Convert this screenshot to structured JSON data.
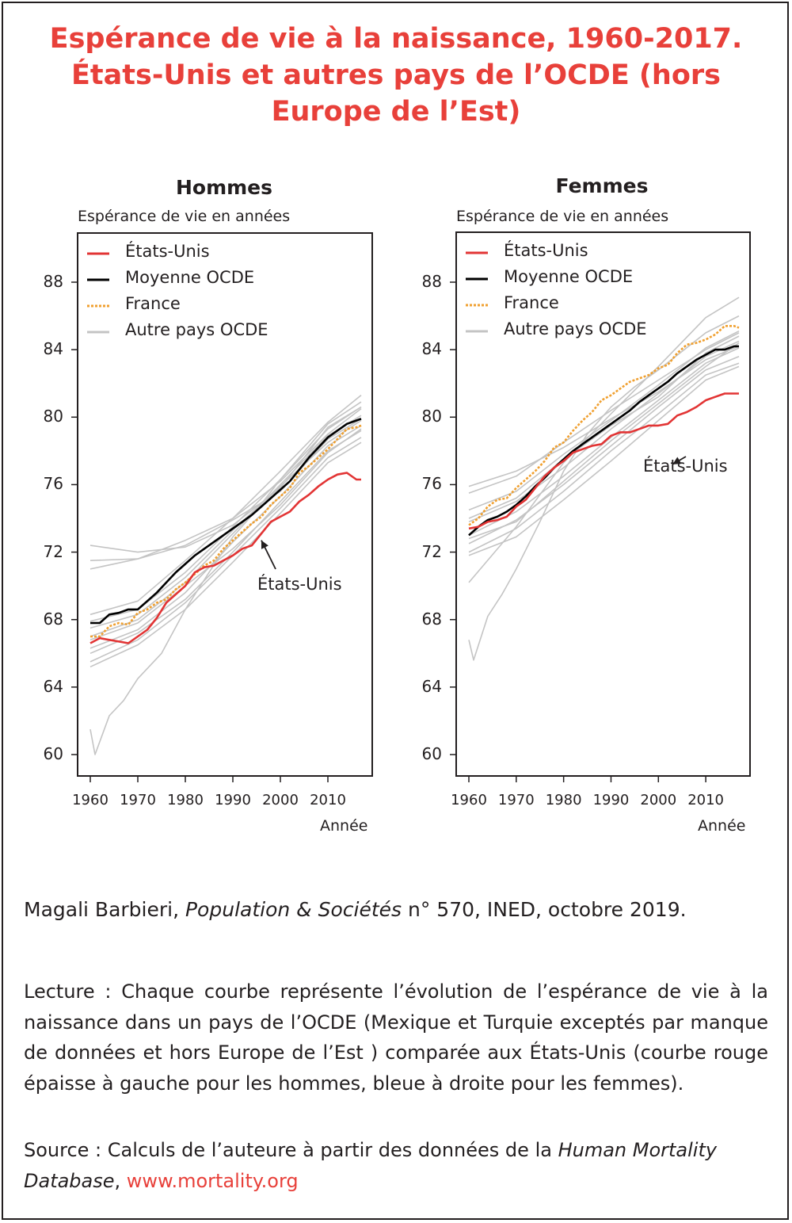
{
  "title": {
    "line1": "Espérance de vie à la naissance, 1960-2017.",
    "line2": "États-Unis et autres pays de l’OCDE (hors",
    "line3": "Europe de l’Est)"
  },
  "colors": {
    "title": "#e8403a",
    "us": "#e23434",
    "oecd": "#000000",
    "france": "#f0a030",
    "others": "#c4c4c4",
    "link": "#e8403a"
  },
  "legend": {
    "us": "États-Unis",
    "oecd": "Moyenne OCDE",
    "france": "France",
    "others": "Autre pays OCDE"
  },
  "chart_data": [
    {
      "type": "line",
      "title": "Hommes",
      "ylabel": "Espérance de vie en années",
      "xlabel": "Année",
      "xlim": [
        1959,
        2017
      ],
      "ylim": [
        59,
        91
      ],
      "xticks": [
        1960,
        1970,
        1980,
        1990,
        2000,
        2010
      ],
      "yticks": [
        60,
        64,
        68,
        72,
        76,
        80,
        84,
        88
      ],
      "annotation": {
        "text": "États-Unis",
        "x": 1996,
        "y": 72.7
      },
      "series": [
        {
          "name": "États-Unis",
          "role": "us",
          "x": [
            1960,
            1962,
            1964,
            1966,
            1968,
            1970,
            1972,
            1974,
            1976,
            1978,
            1980,
            1982,
            1984,
            1986,
            1988,
            1990,
            1992,
            1994,
            1996,
            1998,
            2000,
            2002,
            2004,
            2006,
            2008,
            2010,
            2012,
            2014,
            2016,
            2017
          ],
          "y": [
            66.6,
            66.9,
            66.8,
            66.7,
            66.6,
            67.0,
            67.4,
            68.1,
            69.0,
            69.5,
            70.0,
            70.8,
            71.1,
            71.2,
            71.5,
            71.8,
            72.2,
            72.4,
            73.1,
            73.8,
            74.1,
            74.4,
            75.0,
            75.4,
            75.9,
            76.3,
            76.6,
            76.7,
            76.3,
            76.3
          ]
        },
        {
          "name": "Moyenne OCDE",
          "role": "oecd",
          "x": [
            1960,
            1962,
            1964,
            1966,
            1968,
            1970,
            1972,
            1974,
            1976,
            1978,
            1980,
            1982,
            1984,
            1986,
            1988,
            1990,
            1992,
            1994,
            1996,
            1998,
            2000,
            2002,
            2004,
            2006,
            2008,
            2010,
            2012,
            2014,
            2016,
            2017
          ],
          "y": [
            67.8,
            67.8,
            68.3,
            68.4,
            68.6,
            68.6,
            69.1,
            69.6,
            70.2,
            70.8,
            71.3,
            71.8,
            72.2,
            72.6,
            73.0,
            73.4,
            73.8,
            74.2,
            74.7,
            75.2,
            75.7,
            76.2,
            76.9,
            77.6,
            78.2,
            78.8,
            79.2,
            79.6,
            79.8,
            79.9
          ]
        },
        {
          "name": "France",
          "role": "france",
          "x": [
            1960,
            1962,
            1964,
            1966,
            1968,
            1970,
            1972,
            1974,
            1976,
            1978,
            1980,
            1982,
            1984,
            1986,
            1988,
            1990,
            1992,
            1994,
            1996,
            1998,
            2000,
            2002,
            2004,
            2006,
            2008,
            2010,
            2012,
            2014,
            2016,
            2017
          ],
          "y": [
            67.0,
            67.0,
            67.6,
            67.8,
            67.7,
            68.4,
            68.6,
            69.0,
            69.2,
            69.8,
            70.2,
            70.7,
            71.2,
            71.5,
            72.2,
            72.7,
            73.2,
            73.7,
            74.1,
            74.8,
            75.3,
            75.8,
            76.7,
            77.1,
            77.6,
            78.1,
            78.7,
            79.3,
            79.4,
            79.5
          ]
        },
        {
          "name": "",
          "role": "others",
          "x": [
            1960,
            1970,
            1980,
            1990,
            2000,
            2010,
            2017
          ],
          "y": [
            71.0,
            71.6,
            72.7,
            74.0,
            76.2,
            79.0,
            80.5
          ]
        },
        {
          "name": "",
          "role": "others",
          "x": [
            1960,
            1970,
            1980,
            1990,
            2000,
            2010,
            2017
          ],
          "y": [
            71.5,
            71.6,
            72.4,
            73.9,
            75.6,
            78.7,
            79.9
          ]
        },
        {
          "name": "",
          "role": "others",
          "x": [
            1960,
            1970,
            1980,
            1990,
            2000,
            2010,
            2017
          ],
          "y": [
            72.4,
            72.0,
            72.3,
            73.6,
            75.8,
            79.4,
            80.6
          ]
        },
        {
          "name": "",
          "role": "others",
          "x": [
            1960,
            1970,
            1980,
            1990,
            2000,
            2010,
            2017
          ],
          "y": [
            68.3,
            69.1,
            71.5,
            74.0,
            76.8,
            79.7,
            81.3
          ]
        },
        {
          "name": "",
          "role": "others",
          "x": [
            1960,
            1970,
            1980,
            1990,
            2000,
            2010,
            2017
          ],
          "y": [
            67.9,
            68.6,
            70.8,
            73.5,
            76.3,
            79.3,
            80.6
          ]
        },
        {
          "name": "",
          "role": "others",
          "x": [
            1960,
            1970,
            1980,
            1990,
            2000,
            2010,
            2017
          ],
          "y": [
            67.0,
            68.0,
            70.2,
            73.1,
            76.0,
            78.9,
            80.1
          ]
        },
        {
          "name": "",
          "role": "others",
          "x": [
            1960,
            1970,
            1980,
            1990,
            2000,
            2010,
            2017
          ],
          "y": [
            66.3,
            67.4,
            69.6,
            72.6,
            75.3,
            78.3,
            79.5
          ]
        },
        {
          "name": "",
          "role": "others",
          "x": [
            1960,
            1970,
            1980,
            1990,
            2000,
            2010,
            2017
          ],
          "y": [
            66.0,
            67.2,
            69.2,
            72.0,
            75.0,
            78.0,
            79.2
          ]
        },
        {
          "name": "",
          "role": "others",
          "x": [
            1960,
            1970,
            1980,
            1990,
            2000,
            2010,
            2017
          ],
          "y": [
            65.5,
            66.8,
            69.0,
            71.8,
            74.6,
            77.6,
            78.8
          ]
        },
        {
          "name": "",
          "role": "others",
          "x": [
            1960,
            1970,
            1980,
            1990,
            2000,
            2010,
            2017
          ],
          "y": [
            65.2,
            66.5,
            68.6,
            71.4,
            74.3,
            77.3,
            78.5
          ]
        },
        {
          "name": "",
          "role": "others",
          "x": [
            1960,
            1970,
            1980,
            1990,
            2000,
            2010,
            2017
          ],
          "y": [
            66.8,
            67.8,
            70.0,
            72.2,
            74.8,
            77.9,
            79.3
          ]
        },
        {
          "name": "",
          "role": "others",
          "x": [
            1960,
            1970,
            1980,
            1990,
            2000,
            2010,
            2017
          ],
          "y": [
            67.5,
            68.3,
            70.5,
            73.3,
            75.9,
            78.5,
            79.8
          ]
        },
        {
          "name": "",
          "role": "others",
          "x": [
            1960,
            1961,
            1964,
            1967,
            1970,
            1975,
            1980,
            1985,
            1990,
            1995,
            2000,
            2010,
            2017
          ],
          "y": [
            61.5,
            60.0,
            62.3,
            63.2,
            64.5,
            66.0,
            68.6,
            70.8,
            72.9,
            74.5,
            76.3,
            79.6,
            80.9
          ]
        }
      ]
    },
    {
      "type": "line",
      "title": "Femmes",
      "ylabel": "Espérance de vie en années",
      "xlabel": "Année",
      "xlim": [
        1959,
        2017
      ],
      "ylim": [
        59,
        91
      ],
      "xticks": [
        1960,
        1970,
        1980,
        1990,
        2000,
        2010
      ],
      "yticks": [
        60,
        64,
        68,
        72,
        76,
        80,
        84,
        88
      ],
      "annotation": {
        "text": "États-Unis",
        "x": 2003,
        "y": 77.2
      },
      "series": [
        {
          "name": "États-Unis",
          "role": "us",
          "x": [
            1960,
            1962,
            1964,
            1966,
            1968,
            1970,
            1972,
            1974,
            1976,
            1978,
            1980,
            1982,
            1984,
            1986,
            1988,
            1990,
            1992,
            1994,
            1996,
            1998,
            2000,
            2002,
            2004,
            2006,
            2008,
            2010,
            2012,
            2014,
            2016,
            2017
          ],
          "y": [
            73.4,
            73.5,
            73.8,
            73.9,
            74.1,
            74.7,
            75.1,
            75.8,
            76.5,
            77.0,
            77.4,
            77.9,
            78.1,
            78.3,
            78.4,
            78.9,
            79.1,
            79.1,
            79.3,
            79.5,
            79.5,
            79.6,
            80.1,
            80.3,
            80.6,
            81.0,
            81.2,
            81.4,
            81.4,
            81.4
          ]
        },
        {
          "name": "Moyenne OCDE",
          "role": "oecd",
          "x": [
            1960,
            1962,
            1964,
            1966,
            1968,
            1970,
            1972,
            1974,
            1976,
            1978,
            1980,
            1982,
            1984,
            1986,
            1988,
            1990,
            1992,
            1994,
            1996,
            1998,
            2000,
            2002,
            2004,
            2006,
            2008,
            2010,
            2012,
            2014,
            2016,
            2017
          ],
          "y": [
            73.0,
            73.5,
            73.9,
            74.1,
            74.4,
            74.8,
            75.3,
            75.9,
            76.4,
            77.0,
            77.5,
            78.0,
            78.4,
            78.8,
            79.2,
            79.6,
            80.0,
            80.4,
            80.9,
            81.3,
            81.7,
            82.1,
            82.6,
            83.0,
            83.4,
            83.7,
            84.0,
            84.0,
            84.2,
            84.2
          ]
        },
        {
          "name": "France",
          "role": "france",
          "x": [
            1960,
            1962,
            1964,
            1966,
            1968,
            1970,
            1972,
            1974,
            1976,
            1978,
            1980,
            1982,
            1984,
            1986,
            1988,
            1990,
            1992,
            1994,
            1996,
            1998,
            2000,
            2002,
            2004,
            2006,
            2008,
            2010,
            2012,
            2014,
            2016,
            2017
          ],
          "y": [
            73.6,
            74.0,
            74.7,
            75.1,
            75.2,
            75.8,
            76.3,
            76.8,
            77.4,
            78.2,
            78.5,
            79.2,
            79.8,
            80.3,
            81.0,
            81.3,
            81.7,
            82.1,
            82.3,
            82.5,
            82.9,
            83.1,
            83.8,
            84.3,
            84.4,
            84.6,
            84.9,
            85.4,
            85.4,
            85.3
          ]
        },
        {
          "name": "",
          "role": "others",
          "x": [
            1960,
            1970,
            1980,
            1990,
            2000,
            2010,
            2017
          ],
          "y": [
            70.2,
            73.5,
            77.3,
            80.2,
            83.0,
            85.9,
            87.1
          ]
        },
        {
          "name": "",
          "role": "others",
          "x": [
            1960,
            1970,
            1980,
            1990,
            2000,
            2010,
            2017
          ],
          "y": [
            75.5,
            76.5,
            78.5,
            80.4,
            82.2,
            84.0,
            85.0
          ]
        },
        {
          "name": "",
          "role": "others",
          "x": [
            1960,
            1970,
            1980,
            1990,
            2000,
            2010,
            2017
          ],
          "y": [
            75.9,
            76.8,
            78.2,
            79.9,
            81.5,
            83.4,
            84.2
          ]
        },
        {
          "name": "",
          "role": "others",
          "x": [
            1960,
            1970,
            1980,
            1990,
            2000,
            2010,
            2017
          ],
          "y": [
            74.5,
            75.6,
            77.8,
            79.8,
            81.9,
            84.1,
            85.1
          ]
        },
        {
          "name": "",
          "role": "others",
          "x": [
            1960,
            1970,
            1980,
            1990,
            2000,
            2010,
            2017
          ],
          "y": [
            73.8,
            75.0,
            77.0,
            79.3,
            81.4,
            83.6,
            84.5
          ]
        },
        {
          "name": "",
          "role": "others",
          "x": [
            1960,
            1970,
            1980,
            1990,
            2000,
            2010,
            2017
          ],
          "y": [
            73.0,
            74.4,
            76.5,
            78.8,
            81.0,
            83.2,
            84.1
          ]
        },
        {
          "name": "",
          "role": "others",
          "x": [
            1960,
            1970,
            1980,
            1990,
            2000,
            2010,
            2017
          ],
          "y": [
            72.5,
            73.9,
            76.0,
            78.3,
            80.6,
            82.8,
            83.6
          ]
        },
        {
          "name": "",
          "role": "others",
          "x": [
            1960,
            1970,
            1980,
            1990,
            2000,
            2010,
            2017
          ],
          "y": [
            72.0,
            73.4,
            75.6,
            78.0,
            80.2,
            82.5,
            83.2
          ]
        },
        {
          "name": "",
          "role": "others",
          "x": [
            1960,
            1970,
            1980,
            1990,
            2000,
            2010,
            2017
          ],
          "y": [
            71.8,
            72.9,
            75.1,
            77.4,
            79.8,
            82.2,
            83.0
          ]
        },
        {
          "name": "",
          "role": "others",
          "x": [
            1960,
            1970,
            1980,
            1990,
            2000,
            2010,
            2017
          ],
          "y": [
            72.8,
            73.8,
            76.2,
            78.6,
            80.8,
            83.0,
            84.4
          ]
        },
        {
          "name": "",
          "role": "others",
          "x": [
            1960,
            1970,
            1980,
            1990,
            2000,
            2010,
            2017
          ],
          "y": [
            74.0,
            75.2,
            77.5,
            79.5,
            81.2,
            83.8,
            84.8
          ]
        },
        {
          "name": "",
          "role": "others",
          "x": [
            1960,
            1961,
            1964,
            1967,
            1970,
            1975,
            1980,
            1985,
            1990,
            1995,
            2000,
            2010,
            2017
          ],
          "y": [
            66.8,
            65.6,
            68.2,
            69.5,
            71.0,
            73.8,
            76.8,
            79.0,
            80.6,
            81.8,
            82.8,
            85.0,
            86.0
          ]
        }
      ]
    }
  ],
  "citation": {
    "author": "Magali Barbieri, ",
    "journal": "Population & Sociétés",
    "rest": " n° 570, INED, octobre 2019."
  },
  "reading": "Lecture : Chaque courbe représente l’évolution de l’espérance de vie à la naissance dans un pays de l’OCDE (Mexique et Turquie exceptés par manque de données et hors Europe de l’Est ) comparée aux États-Unis (courbe rouge épaisse à gauche pour les hommes, bleue à droite pour les femmes).",
  "source": {
    "prefix": "Source : Calculs de l’auteure à partir des données de la ",
    "database": "Human Mortality Database",
    "sep": ", ",
    "url": "www.mortality.org"
  }
}
